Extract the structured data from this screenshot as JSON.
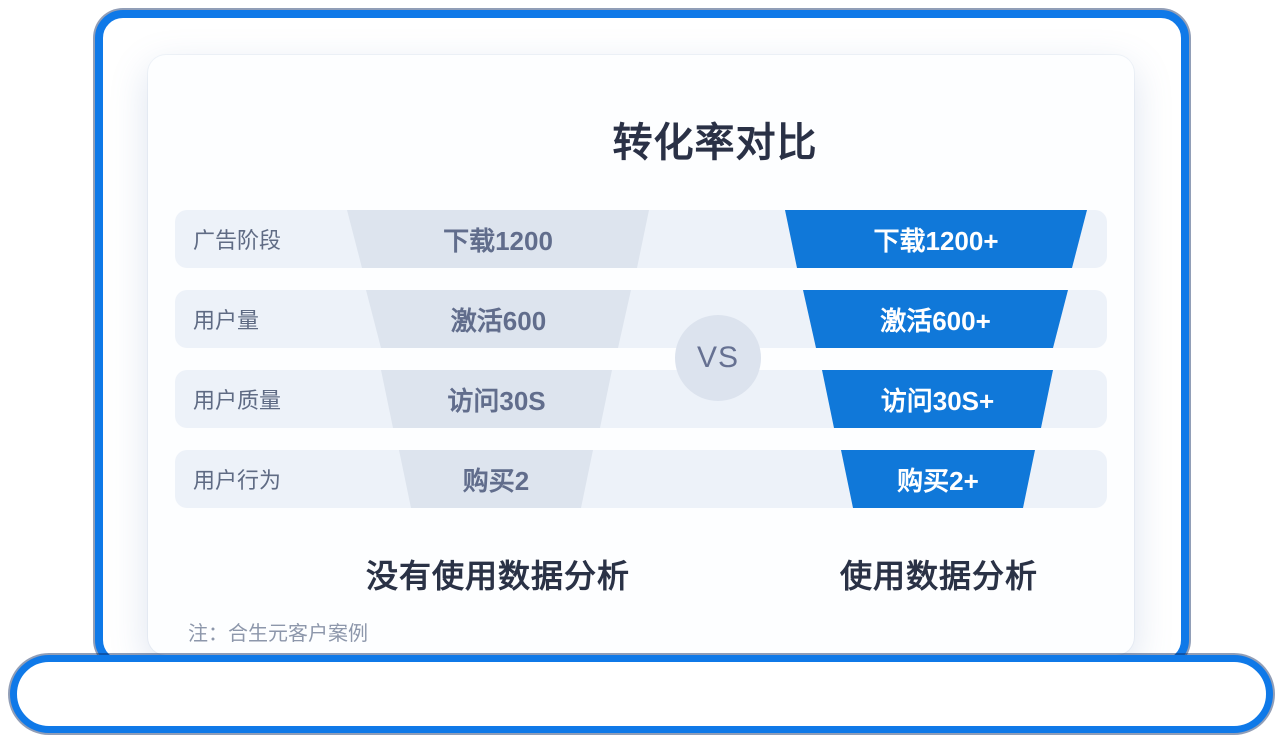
{
  "title": "转化率对比",
  "vs_label": "VS",
  "funnel": {
    "rows": [
      {
        "stage": "广告阶段",
        "without": "下载1200",
        "with": "下载1200+"
      },
      {
        "stage": "用户量",
        "without": "激活600",
        "with": "激活600+"
      },
      {
        "stage": "用户质量",
        "without": "访问30S",
        "with": "访问30S+"
      },
      {
        "stage": "用户行为",
        "without": "购买2",
        "with": "购买2+"
      }
    ]
  },
  "captions": {
    "left": "没有使用数据分析",
    "right": "使用数据分析"
  },
  "note": "注：合生元客户案例",
  "colors": {
    "frame_blue": "#0f79e8",
    "funnel_blue": "#1078d9",
    "funnel_gray": "#dde4ee",
    "row_background": "#edf2f9",
    "vs_badge_background": "#dce3ee",
    "title_text": "#2a3146",
    "stage_label_text": "#5f6b84",
    "gray_value_text": "#616d8c",
    "note_text": "#8d97ab"
  }
}
